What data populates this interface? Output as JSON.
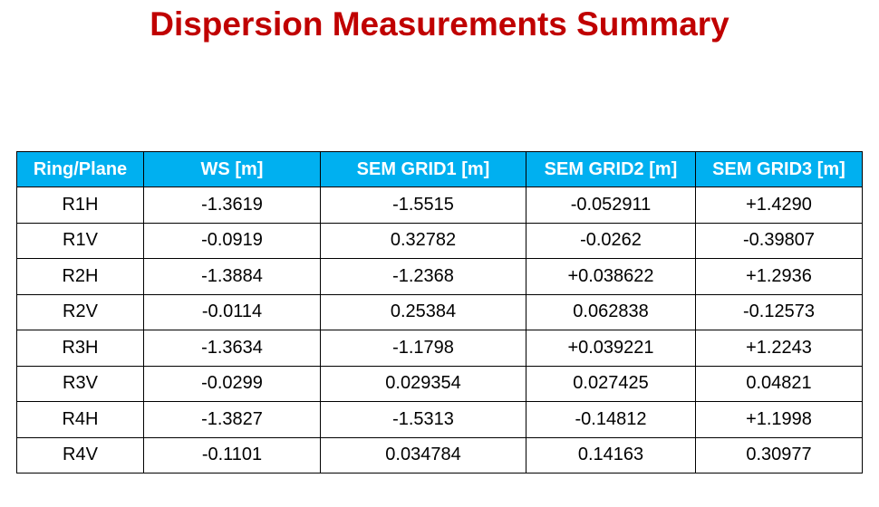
{
  "title": "Dispersion Measurements Summary",
  "table": {
    "headers": [
      "Ring/Plane",
      "WS [m]",
      "SEM GRID1 [m]",
      "SEM GRID2 [m]",
      "SEM GRID3 [m]"
    ],
    "rows": [
      [
        "R1H",
        "-1.3619",
        "-1.5515",
        "-0.052911",
        "+1.4290"
      ],
      [
        "R1V",
        "-0.0919",
        "0.32782",
        "-0.0262",
        "-0.39807"
      ],
      [
        "R2H",
        "-1.3884",
        "-1.2368",
        "+0.038622",
        "+1.2936"
      ],
      [
        "R2V",
        "-0.0114",
        "0.25384",
        "0.062838",
        "-0.12573"
      ],
      [
        "R3H",
        "-1.3634",
        "-1.1798",
        "+0.039221",
        "+1.2243"
      ],
      [
        "R3V",
        "-0.0299",
        "0.029354",
        "0.027425",
        "0.04821"
      ],
      [
        "R4H",
        "-1.3827",
        "-1.5313",
        "-0.14812",
        "+1.1998"
      ],
      [
        "R4V",
        "-0.1101",
        "0.034784",
        "0.14163",
        "0.30977"
      ]
    ]
  },
  "colors": {
    "title": "#c00000",
    "header_background": "#00b0f0",
    "header_text": "#ffffff",
    "border": "#000000"
  }
}
